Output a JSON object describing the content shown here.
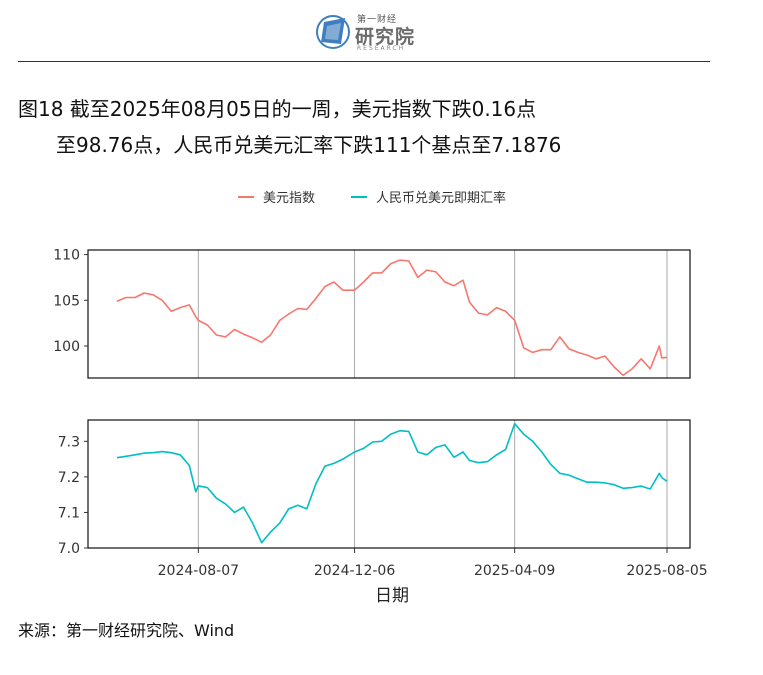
{
  "header": {
    "logo_top": "第一财经",
    "logo_main": "研究院",
    "logo_sub": "RESEARCH",
    "title_line1": "图18  截至2025年08月05日的一周，美元指数下跌0.16点",
    "title_line2": "至98.76点，人民币兑美元汇率下跌111个基点至7.1876"
  },
  "source": "来源：第一财经研究院、Wind",
  "colors": {
    "usd": "#F8766D",
    "cny": "#00BFC4"
  },
  "chart_data": {
    "type": "line",
    "xlabel": "日期",
    "x_ticks": [
      "2024-08-07",
      "2024-12-06",
      "2025-04-09",
      "2025-08-05"
    ],
    "x_range": [
      "2024-06-05",
      "2025-08-05"
    ],
    "legend_position": "top",
    "grid": "vertical lines at x ticks",
    "panels": [
      {
        "name": "美元指数",
        "ylim": [
          96.5,
          110.5
        ],
        "y_ticks": [
          100,
          105,
          110
        ],
        "points": [
          [
            "2024-06-05",
            104.9
          ],
          [
            "2024-06-12",
            105.3
          ],
          [
            "2024-06-19",
            105.3
          ],
          [
            "2024-06-26",
            105.8
          ],
          [
            "2024-07-03",
            105.6
          ],
          [
            "2024-07-10",
            105.0
          ],
          [
            "2024-07-17",
            103.8
          ],
          [
            "2024-07-24",
            104.2
          ],
          [
            "2024-07-31",
            104.5
          ],
          [
            "2024-08-05",
            103.2
          ],
          [
            "2024-08-07",
            102.8
          ],
          [
            "2024-08-14",
            102.3
          ],
          [
            "2024-08-21",
            101.2
          ],
          [
            "2024-08-28",
            101.0
          ],
          [
            "2024-09-04",
            101.8
          ],
          [
            "2024-09-11",
            101.3
          ],
          [
            "2024-09-18",
            100.9
          ],
          [
            "2024-09-25",
            100.4
          ],
          [
            "2024-10-02",
            101.2
          ],
          [
            "2024-10-09",
            102.8
          ],
          [
            "2024-10-16",
            103.5
          ],
          [
            "2024-10-23",
            104.1
          ],
          [
            "2024-10-30",
            104.0
          ],
          [
            "2024-11-06",
            105.2
          ],
          [
            "2024-11-13",
            106.5
          ],
          [
            "2024-11-20",
            107.0
          ],
          [
            "2024-11-27",
            106.1
          ],
          [
            "2024-12-06",
            106.1
          ],
          [
            "2024-12-13",
            107.0
          ],
          [
            "2024-12-20",
            108.0
          ],
          [
            "2024-12-27",
            108.0
          ],
          [
            "2025-01-03",
            109.0
          ],
          [
            "2025-01-10",
            109.4
          ],
          [
            "2025-01-17",
            109.3
          ],
          [
            "2025-01-24",
            107.5
          ],
          [
            "2025-01-31",
            108.3
          ],
          [
            "2025-02-07",
            108.1
          ],
          [
            "2025-02-14",
            107.0
          ],
          [
            "2025-02-21",
            106.6
          ],
          [
            "2025-02-28",
            107.2
          ],
          [
            "2025-03-05",
            104.8
          ],
          [
            "2025-03-12",
            103.6
          ],
          [
            "2025-03-19",
            103.4
          ],
          [
            "2025-03-26",
            104.2
          ],
          [
            "2025-04-02",
            103.8
          ],
          [
            "2025-04-09",
            102.8
          ],
          [
            "2025-04-16",
            99.8
          ],
          [
            "2025-04-23",
            99.3
          ],
          [
            "2025-04-30",
            99.6
          ],
          [
            "2025-05-07",
            99.6
          ],
          [
            "2025-05-14",
            101.0
          ],
          [
            "2025-05-21",
            99.7
          ],
          [
            "2025-05-28",
            99.3
          ],
          [
            "2025-06-04",
            99.0
          ],
          [
            "2025-06-11",
            98.6
          ],
          [
            "2025-06-18",
            98.9
          ],
          [
            "2025-06-25",
            97.7
          ],
          [
            "2025-07-02",
            96.8
          ],
          [
            "2025-07-09",
            97.5
          ],
          [
            "2025-07-16",
            98.6
          ],
          [
            "2025-07-23",
            97.5
          ],
          [
            "2025-07-30",
            100.0
          ],
          [
            "2025-08-01",
            98.7
          ],
          [
            "2025-08-05",
            98.76
          ]
        ]
      },
      {
        "name": "人民币兑美元即期汇率",
        "ylim": [
          7.0,
          7.36
        ],
        "y_ticks": [
          7.0,
          7.1,
          7.2,
          7.3
        ],
        "points": [
          [
            "2024-06-05",
            7.254
          ],
          [
            "2024-06-12",
            7.258
          ],
          [
            "2024-06-19",
            7.262
          ],
          [
            "2024-06-26",
            7.267
          ],
          [
            "2024-07-03",
            7.268
          ],
          [
            "2024-07-10",
            7.271
          ],
          [
            "2024-07-17",
            7.268
          ],
          [
            "2024-07-24",
            7.262
          ],
          [
            "2024-07-31",
            7.232
          ],
          [
            "2024-08-05",
            7.158
          ],
          [
            "2024-08-07",
            7.175
          ],
          [
            "2024-08-14",
            7.17
          ],
          [
            "2024-08-21",
            7.14
          ],
          [
            "2024-08-28",
            7.124
          ],
          [
            "2024-09-04",
            7.1
          ],
          [
            "2024-09-11",
            7.115
          ],
          [
            "2024-09-18",
            7.07
          ],
          [
            "2024-09-25",
            7.015
          ],
          [
            "2024-10-02",
            7.045
          ],
          [
            "2024-10-09",
            7.07
          ],
          [
            "2024-10-16",
            7.11
          ],
          [
            "2024-10-23",
            7.12
          ],
          [
            "2024-10-30",
            7.11
          ],
          [
            "2024-11-06",
            7.18
          ],
          [
            "2024-11-13",
            7.23
          ],
          [
            "2024-11-20",
            7.238
          ],
          [
            "2024-11-27",
            7.25
          ],
          [
            "2024-12-06",
            7.27
          ],
          [
            "2024-12-13",
            7.28
          ],
          [
            "2024-12-20",
            7.298
          ],
          [
            "2024-12-27",
            7.3
          ],
          [
            "2025-01-03",
            7.32
          ],
          [
            "2025-01-10",
            7.33
          ],
          [
            "2025-01-17",
            7.328
          ],
          [
            "2025-01-24",
            7.27
          ],
          [
            "2025-01-31",
            7.262
          ],
          [
            "2025-02-07",
            7.283
          ],
          [
            "2025-02-14",
            7.29
          ],
          [
            "2025-02-21",
            7.255
          ],
          [
            "2025-02-28",
            7.27
          ],
          [
            "2025-03-05",
            7.246
          ],
          [
            "2025-03-12",
            7.24
          ],
          [
            "2025-03-19",
            7.243
          ],
          [
            "2025-03-26",
            7.262
          ],
          [
            "2025-04-02",
            7.277
          ],
          [
            "2025-04-09",
            7.35
          ],
          [
            "2025-04-16",
            7.32
          ],
          [
            "2025-04-23",
            7.3
          ],
          [
            "2025-04-30",
            7.27
          ],
          [
            "2025-05-07",
            7.235
          ],
          [
            "2025-05-14",
            7.21
          ],
          [
            "2025-05-21",
            7.205
          ],
          [
            "2025-05-28",
            7.195
          ],
          [
            "2025-06-04",
            7.185
          ],
          [
            "2025-06-11",
            7.185
          ],
          [
            "2025-06-18",
            7.183
          ],
          [
            "2025-06-25",
            7.178
          ],
          [
            "2025-07-02",
            7.168
          ],
          [
            "2025-07-09",
            7.17
          ],
          [
            "2025-07-16",
            7.174
          ],
          [
            "2025-07-23",
            7.166
          ],
          [
            "2025-07-30",
            7.21
          ],
          [
            "2025-08-01",
            7.198
          ],
          [
            "2025-08-05",
            7.1876
          ]
        ]
      }
    ]
  }
}
